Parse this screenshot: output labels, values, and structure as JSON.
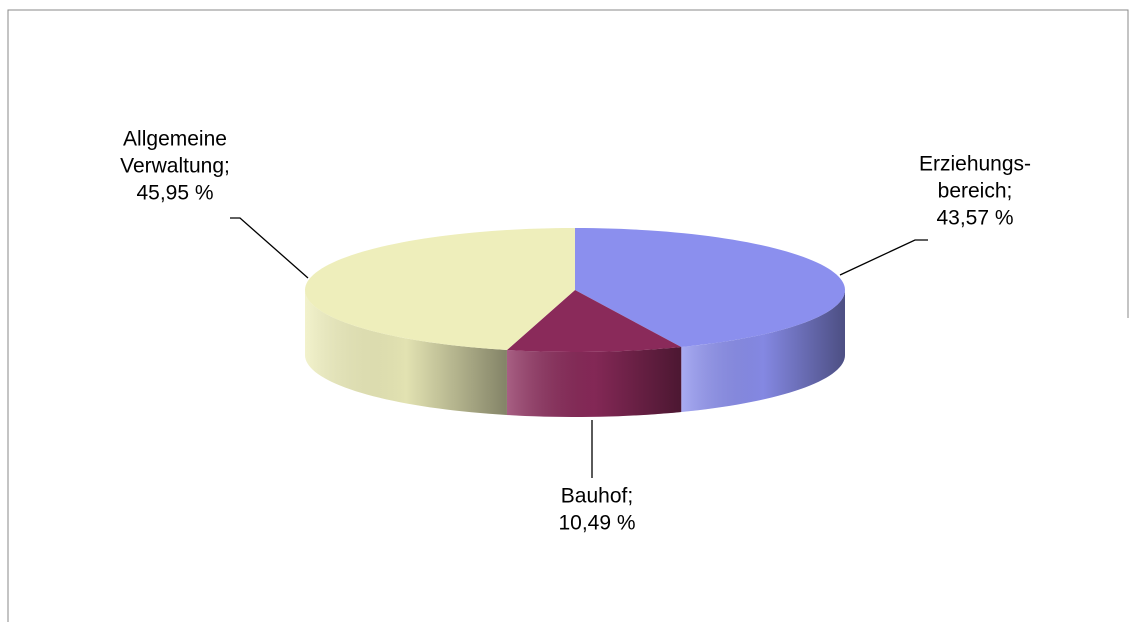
{
  "chart_data": {
    "type": "pie",
    "categories": [
      [
        "Erziehungs-",
        "bereich;"
      ],
      [
        "Bauhof;"
      ],
      [
        "Allgemeine",
        "Verwaltung;"
      ]
    ],
    "values": [
      43.57,
      10.49,
      45.95
    ],
    "value_labels": [
      "43,57 %",
      "10,49 %",
      "45,95 %"
    ],
    "colors": [
      "#8b8fee",
      "#8a2a5a",
      "#eeeebb"
    ]
  }
}
